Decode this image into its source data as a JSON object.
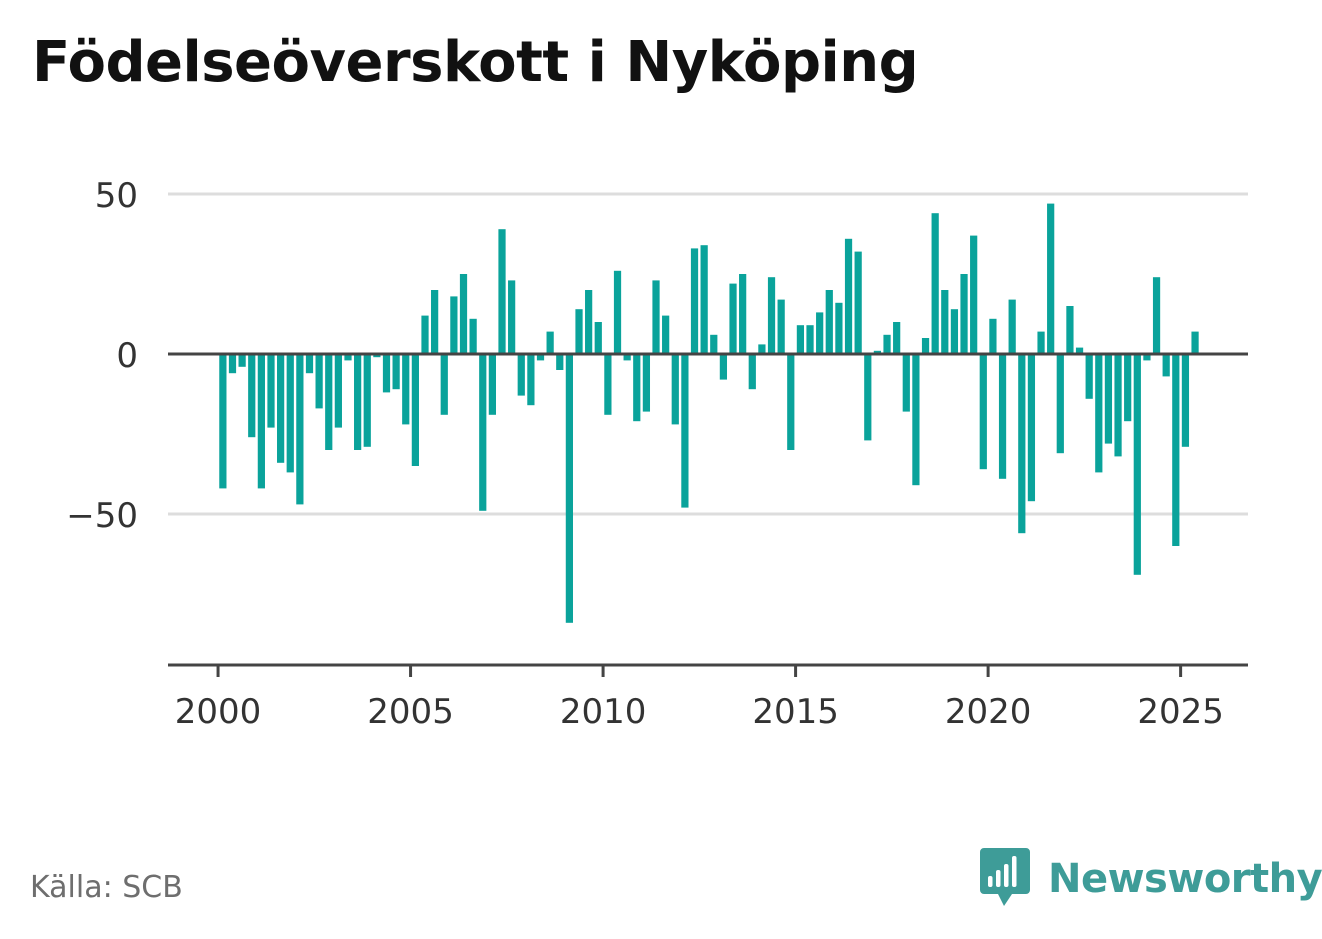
{
  "colors": {
    "bar": "#0aa39b",
    "brand": "#3e9c98",
    "grid": "#dddddd",
    "axis": "#444444",
    "tick_text": "#333333"
  },
  "source": "Källa: SCB",
  "brand": {
    "name": "Newsworthy",
    "icon": "bar-chart-speech-bubble-icon"
  },
  "chart_data": {
    "type": "bar",
    "title": "Födelseöverskott i Nyköping",
    "xlabel": "",
    "ylabel": "",
    "x_ticks": [
      2000,
      2005,
      2010,
      2015,
      2020,
      2025
    ],
    "y_ticks": [
      50,
      0,
      -50
    ],
    "y_tick_labels": [
      "50",
      "0",
      "−50"
    ],
    "ylim": [
      -96,
      50
    ],
    "xlim": [
      1998.7,
      2026.75
    ],
    "grid": true,
    "legend": "none",
    "series": [
      {
        "x": [
          2000.125,
          2000.375,
          2000.625,
          2000.875,
          2001.125,
          2001.375,
          2001.625,
          2001.875,
          2002.125,
          2002.375,
          2002.625,
          2002.875,
          2003.125,
          2003.375,
          2003.625,
          2003.875,
          2004.125,
          2004.375,
          2004.625,
          2004.875,
          2005.125,
          2005.375,
          2005.625,
          2005.875,
          2006.125,
          2006.375,
          2006.625,
          2006.875,
          2007.125,
          2007.375,
          2007.625,
          2007.875,
          2008.125,
          2008.375,
          2008.625,
          2008.875,
          2009.125,
          2009.375,
          2009.625,
          2009.875,
          2010.125,
          2010.375,
          2010.625,
          2010.875,
          2011.125,
          2011.375,
          2011.625,
          2011.875,
          2012.125,
          2012.375,
          2012.625,
          2012.875,
          2013.125,
          2013.375,
          2013.625,
          2013.875,
          2014.125,
          2014.375,
          2014.625,
          2014.875,
          2015.125,
          2015.375,
          2015.625,
          2015.875,
          2016.125,
          2016.375,
          2016.625,
          2016.875,
          2017.125,
          2017.375,
          2017.625,
          2017.875,
          2018.125,
          2018.375,
          2018.625,
          2018.875,
          2019.125,
          2019.375,
          2019.625,
          2019.875,
          2020.125,
          2020.375,
          2020.625,
          2020.875,
          2021.125,
          2021.375,
          2021.625,
          2021.875,
          2022.125,
          2022.375,
          2022.625,
          2022.875,
          2023.125,
          2023.375,
          2023.625,
          2023.875,
          2024.125,
          2024.375,
          2024.625,
          2024.875,
          2025.125,
          2025.375
        ],
        "values": [
          -42,
          -6,
          -4,
          -26,
          -42,
          -23,
          -34,
          -37,
          -47,
          -6,
          -17,
          -30,
          -23,
          -2,
          -30,
          -29,
          -1,
          -12,
          -11,
          -22,
          -35,
          12,
          20,
          -19,
          18,
          25,
          11,
          -49,
          -19,
          39,
          23,
          -13,
          -16,
          -2,
          7,
          -5,
          -84,
          14,
          20,
          10,
          -19,
          26,
          -2,
          -21,
          -18,
          23,
          12,
          -22,
          -48,
          33,
          34,
          6,
          -8,
          22,
          25,
          -11,
          3,
          24,
          17,
          -30,
          9,
          9,
          13,
          20,
          16,
          36,
          32,
          -27,
          1,
          6,
          10,
          -18,
          -41,
          5,
          44,
          20,
          14,
          25,
          37,
          -36,
          11,
          -39,
          17,
          -56,
          -46,
          7,
          47,
          -31,
          15,
          2,
          -14,
          -37,
          -28,
          -32,
          -21,
          -69,
          -2,
          24,
          -7,
          -60,
          -29,
          7
        ]
      }
    ]
  }
}
